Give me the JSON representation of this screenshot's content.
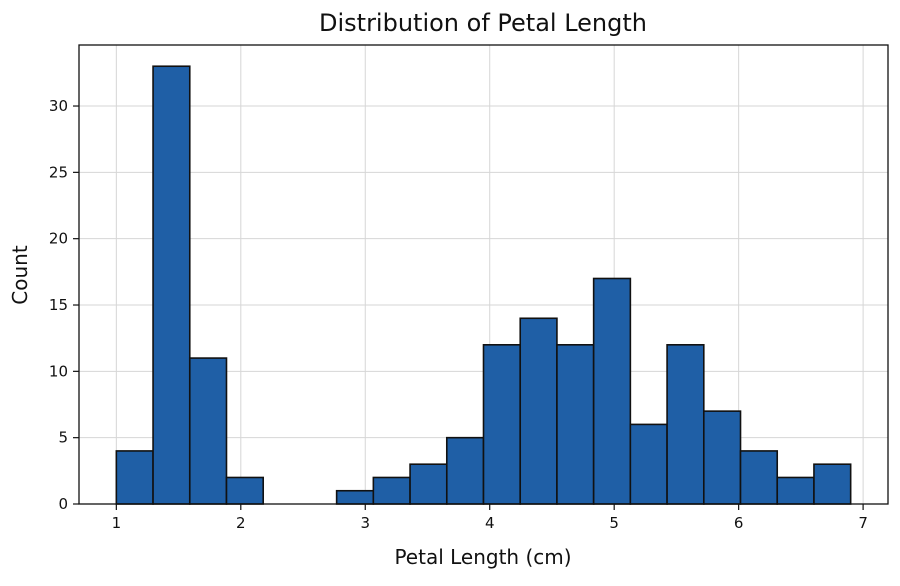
{
  "chart_data": {
    "type": "bar",
    "title": "Distribution of Petal Length",
    "xlabel": "Petal Length (cm)",
    "ylabel": "Count",
    "xlim": [
      0.7,
      7.2
    ],
    "ylim": [
      0,
      34.6
    ],
    "xticks": [
      1,
      2,
      3,
      4,
      5,
      6,
      7
    ],
    "yticks": [
      0,
      5,
      10,
      15,
      20,
      25,
      30
    ],
    "grid": true,
    "bin_edges": [
      1.0,
      1.295,
      1.59,
      1.885,
      2.18,
      2.475,
      2.77,
      3.065,
      3.36,
      3.655,
      3.95,
      4.245,
      4.54,
      4.835,
      5.13,
      5.425,
      5.72,
      6.015,
      6.31,
      6.605,
      6.9
    ],
    "values": [
      4,
      33,
      11,
      2,
      0,
      0,
      1,
      2,
      3,
      5,
      12,
      14,
      12,
      17,
      6,
      12,
      7,
      4,
      2,
      3
    ],
    "bar_color": "#1f5fa6",
    "edge_color": "#111111"
  }
}
